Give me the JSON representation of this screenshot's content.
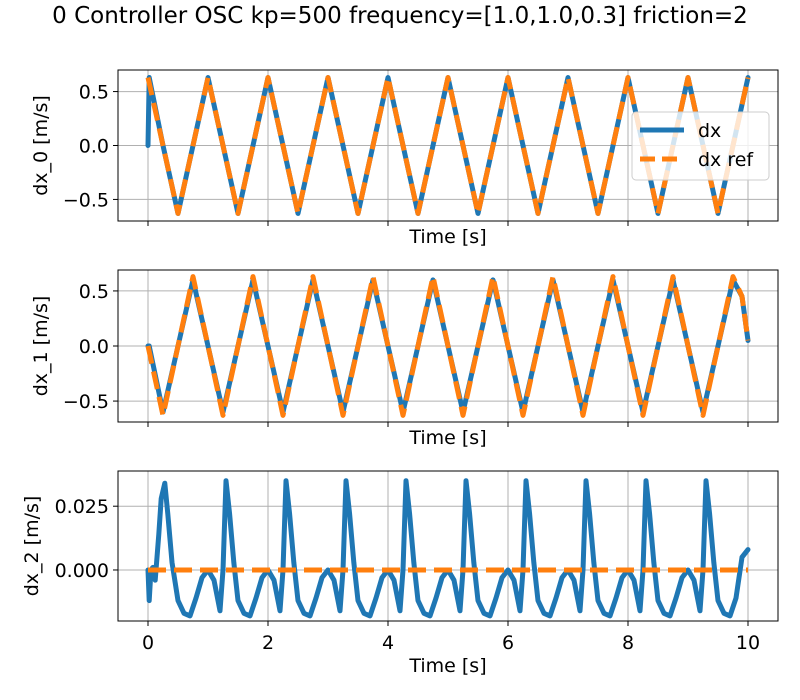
{
  "figure": {
    "title": "0 Controller OSC kp=500 frequency=[1.0,1.0,0.3] friction=2"
  },
  "colors": {
    "dx": "#1f77b4",
    "dx_ref": "#ff7f0e",
    "grid": "#b0b0b0",
    "axes": "#000000"
  },
  "chart_data": [
    {
      "type": "line",
      "xlabel": "Time [s]",
      "ylabel": "dx_0 [m/s]",
      "xlim": [
        -0.5,
        10.5
      ],
      "ylim": [
        -0.7,
        0.7
      ],
      "xticks": [
        0,
        2,
        4,
        6,
        8,
        10
      ],
      "show_xticklabels": false,
      "yticks": [
        -0.5,
        0.0,
        0.5
      ],
      "yticklabels": [
        "−0.5",
        "0.0",
        "0.5"
      ],
      "grid": true,
      "legend": {
        "position": "right",
        "entries": [
          "dx",
          "dx ref"
        ]
      },
      "series": [
        {
          "name": "dx",
          "style": "solid",
          "description_values": {
            "x": [
              0,
              0.02,
              0.25,
              0.5,
              0.75,
              1.0,
              1.25,
              1.5,
              1.75,
              2.0,
              2.25,
              2.5,
              2.75,
              3.0,
              3.25,
              3.5,
              3.75,
              4.0,
              4.25,
              4.5,
              4.75,
              5.0,
              5.25,
              5.5,
              5.75,
              6.0,
              6.25,
              6.5,
              6.75,
              7.0,
              7.25,
              7.5,
              7.75,
              8.0,
              8.25,
              8.5,
              8.75,
              9.0,
              9.25,
              9.5,
              9.75,
              10.0
            ],
            "y": [
              0.0,
              0.63,
              0.0,
              -0.63,
              0.0,
              0.63,
              0.0,
              -0.63,
              0.0,
              0.63,
              0.0,
              -0.63,
              0.0,
              0.63,
              0.0,
              -0.63,
              0.0,
              0.63,
              0.0,
              -0.63,
              0.0,
              0.63,
              0.0,
              -0.63,
              0.0,
              0.63,
              0.0,
              -0.63,
              0.0,
              0.63,
              0.0,
              -0.63,
              0.0,
              0.63,
              0.0,
              -0.63,
              0.0,
              0.63,
              0.0,
              -0.63,
              0.0,
              0.63
            ]
          }
        },
        {
          "name": "dx ref",
          "style": "dashed",
          "description_values": {
            "x": [
              0,
              0.25,
              0.5,
              0.75,
              1.0,
              1.25,
              1.5,
              1.75,
              2.0,
              2.25,
              2.5,
              2.75,
              3.0,
              3.25,
              3.5,
              3.75,
              4.0,
              4.25,
              4.5,
              4.75,
              5.0,
              5.25,
              5.5,
              5.75,
              6.0,
              6.25,
              6.5,
              6.75,
              7.0,
              7.25,
              7.5,
              7.75,
              8.0,
              8.25,
              8.5,
              8.75,
              9.0,
              9.25,
              9.5,
              9.75,
              10.0
            ],
            "y": [
              0.63,
              0.0,
              -0.63,
              0.0,
              0.63,
              0.0,
              -0.63,
              0.0,
              0.63,
              0.0,
              -0.63,
              0.0,
              0.63,
              0.0,
              -0.63,
              0.0,
              0.63,
              0.0,
              -0.63,
              0.0,
              0.63,
              0.0,
              -0.63,
              0.0,
              0.63,
              0.0,
              -0.63,
              0.0,
              0.63,
              0.0,
              -0.63,
              0.0,
              0.63,
              0.0,
              -0.63,
              0.0,
              0.63,
              0.0,
              -0.63,
              0.0,
              0.63
            ]
          }
        }
      ]
    },
    {
      "type": "line",
      "xlabel": "Time [s]",
      "ylabel": "dx_1 [m/s]",
      "xlim": [
        -0.5,
        10.5
      ],
      "ylim": [
        -0.69,
        0.69
      ],
      "xticks": [
        0,
        2,
        4,
        6,
        8,
        10
      ],
      "show_xticklabels": false,
      "yticks": [
        -0.5,
        0.0,
        0.5
      ],
      "yticklabels": [
        "−0.5",
        "0.0",
        "0.5"
      ],
      "grid": true,
      "series": [
        {
          "name": "dx",
          "style": "solid",
          "description_values": {
            "x": [
              0,
              0.02,
              0.25,
              0.5,
              0.75,
              1.0,
              1.25,
              1.5,
              1.75,
              2.0,
              2.25,
              2.5,
              2.75,
              3.0,
              3.25,
              3.5,
              3.75,
              4.0,
              4.25,
              4.5,
              4.75,
              5.0,
              5.25,
              5.5,
              5.75,
              6.0,
              6.25,
              6.5,
              6.75,
              7.0,
              7.25,
              7.5,
              7.75,
              8.0,
              8.25,
              8.5,
              8.75,
              9.0,
              9.25,
              9.5,
              9.75,
              9.9,
              10.0
            ],
            "y": [
              0.0,
              0.0,
              -0.6,
              0.0,
              0.6,
              0.0,
              -0.6,
              0.0,
              0.6,
              0.0,
              -0.6,
              0.0,
              0.6,
              0.0,
              -0.6,
              0.0,
              0.6,
              0.0,
              -0.6,
              0.0,
              0.6,
              0.0,
              -0.6,
              0.0,
              0.6,
              0.0,
              -0.6,
              0.0,
              0.6,
              0.0,
              -0.6,
              0.0,
              0.6,
              0.0,
              -0.6,
              0.0,
              0.6,
              0.0,
              -0.6,
              0.0,
              0.6,
              0.45,
              0.05
            ]
          }
        },
        {
          "name": "dx ref",
          "style": "dashed",
          "description_values": {
            "x": [
              0,
              0.25,
              0.5,
              0.75,
              1.0,
              1.25,
              1.5,
              1.75,
              2.0,
              2.25,
              2.5,
              2.75,
              3.0,
              3.25,
              3.5,
              3.75,
              4.0,
              4.25,
              4.5,
              4.75,
              5.0,
              5.25,
              5.5,
              5.75,
              6.0,
              6.25,
              6.5,
              6.75,
              7.0,
              7.25,
              7.5,
              7.75,
              8.0,
              8.25,
              8.5,
              8.75,
              9.0,
              9.25,
              9.5,
              9.75,
              9.9,
              10.0
            ],
            "y": [
              0.0,
              -0.63,
              0.0,
              0.63,
              0.0,
              -0.63,
              0.0,
              0.63,
              0.0,
              -0.63,
              0.0,
              0.63,
              0.0,
              -0.63,
              0.0,
              0.63,
              0.0,
              -0.63,
              0.0,
              0.63,
              0.0,
              -0.63,
              0.0,
              0.63,
              0.0,
              -0.63,
              0.0,
              0.63,
              0.0,
              -0.63,
              0.0,
              0.63,
              0.0,
              -0.63,
              0.0,
              0.63,
              0.0,
              -0.63,
              0.0,
              0.63,
              0.45,
              0.05
            ]
          }
        }
      ]
    },
    {
      "type": "line",
      "xlabel": "Time [s]",
      "ylabel": "dx_2 [m/s]",
      "xlim": [
        -0.5,
        10.5
      ],
      "ylim": [
        -0.02,
        0.0388
      ],
      "xticks": [
        0,
        2,
        4,
        6,
        8,
        10
      ],
      "xticklabels": [
        "0",
        "2",
        "4",
        "6",
        "8",
        "10"
      ],
      "show_xticklabels": true,
      "yticks": [
        0.0,
        0.025
      ],
      "yticklabels": [
        "0.000",
        "0.025"
      ],
      "grid": true,
      "series": [
        {
          "name": "dx",
          "style": "solid",
          "description_values": {
            "x": [
              0,
              0.02,
              0.05,
              0.08,
              0.12,
              0.18,
              0.22,
              0.28,
              0.33,
              0.4,
              0.5,
              0.6,
              0.7,
              0.8,
              0.9,
              1.0,
              1.1,
              1.2,
              1.25,
              1.3,
              1.36,
              1.43,
              1.5,
              1.6,
              1.7,
              1.8,
              1.9,
              2.0,
              2.1,
              2.2,
              2.25,
              2.3,
              2.36,
              2.43,
              2.5,
              2.6,
              2.7,
              2.8,
              2.9,
              3.0,
              3.1,
              3.2,
              3.25,
              3.3,
              3.36,
              3.43,
              3.5,
              3.6,
              3.7,
              3.8,
              3.9,
              4.0,
              4.1,
              4.2,
              4.25,
              4.3,
              4.36,
              4.43,
              4.5,
              4.6,
              4.7,
              4.8,
              4.9,
              5.0,
              5.1,
              5.2,
              5.25,
              5.3,
              5.36,
              5.43,
              5.5,
              5.6,
              5.7,
              5.8,
              5.9,
              6.0,
              6.1,
              6.2,
              6.25,
              6.3,
              6.36,
              6.43,
              6.5,
              6.6,
              6.7,
              6.8,
              6.9,
              7.0,
              7.1,
              7.2,
              7.25,
              7.3,
              7.36,
              7.43,
              7.5,
              7.6,
              7.7,
              7.8,
              7.9,
              8.0,
              8.1,
              8.2,
              8.25,
              8.3,
              8.36,
              8.43,
              8.5,
              8.6,
              8.7,
              8.8,
              8.9,
              9.0,
              9.1,
              9.2,
              9.25,
              9.3,
              9.36,
              9.43,
              9.5,
              9.6,
              9.7,
              9.8,
              9.9,
              10.0
            ],
            "y": [
              0.0,
              -0.012,
              0.0,
              0.001,
              -0.004,
              0.014,
              0.028,
              0.034,
              0.022,
              0.003,
              -0.012,
              -0.017,
              -0.018,
              -0.011,
              -0.003,
              0.0,
              -0.004,
              -0.016,
              0.0,
              0.035,
              0.022,
              0.003,
              -0.012,
              -0.017,
              -0.018,
              -0.011,
              -0.003,
              0.0,
              -0.004,
              -0.016,
              0.0,
              0.035,
              0.022,
              0.003,
              -0.012,
              -0.017,
              -0.018,
              -0.011,
              -0.003,
              0.0,
              -0.004,
              -0.016,
              0.0,
              0.035,
              0.022,
              0.003,
              -0.012,
              -0.017,
              -0.018,
              -0.011,
              -0.003,
              0.0,
              -0.004,
              -0.016,
              0.0,
              0.035,
              0.022,
              0.003,
              -0.012,
              -0.017,
              -0.018,
              -0.011,
              -0.003,
              0.0,
              -0.004,
              -0.016,
              0.0,
              0.035,
              0.022,
              0.003,
              -0.012,
              -0.017,
              -0.018,
              -0.011,
              -0.003,
              0.0,
              -0.004,
              -0.016,
              0.0,
              0.035,
              0.022,
              0.003,
              -0.012,
              -0.017,
              -0.018,
              -0.011,
              -0.003,
              0.0,
              -0.004,
              -0.016,
              0.0,
              0.035,
              0.022,
              0.003,
              -0.012,
              -0.017,
              -0.018,
              -0.011,
              -0.003,
              0.0,
              -0.004,
              -0.016,
              0.0,
              0.035,
              0.022,
              0.003,
              -0.012,
              -0.017,
              -0.018,
              -0.011,
              -0.003,
              0.0,
              -0.004,
              -0.016,
              0.0,
              0.035,
              0.022,
              0.003,
              -0.012,
              -0.017,
              -0.018,
              -0.011,
              0.005,
              0.008
            ]
          }
        },
        {
          "name": "dx ref",
          "style": "dashed",
          "description_values": {
            "x": [
              0,
              10
            ],
            "y": [
              0.0,
              0.0
            ]
          }
        }
      ]
    }
  ]
}
